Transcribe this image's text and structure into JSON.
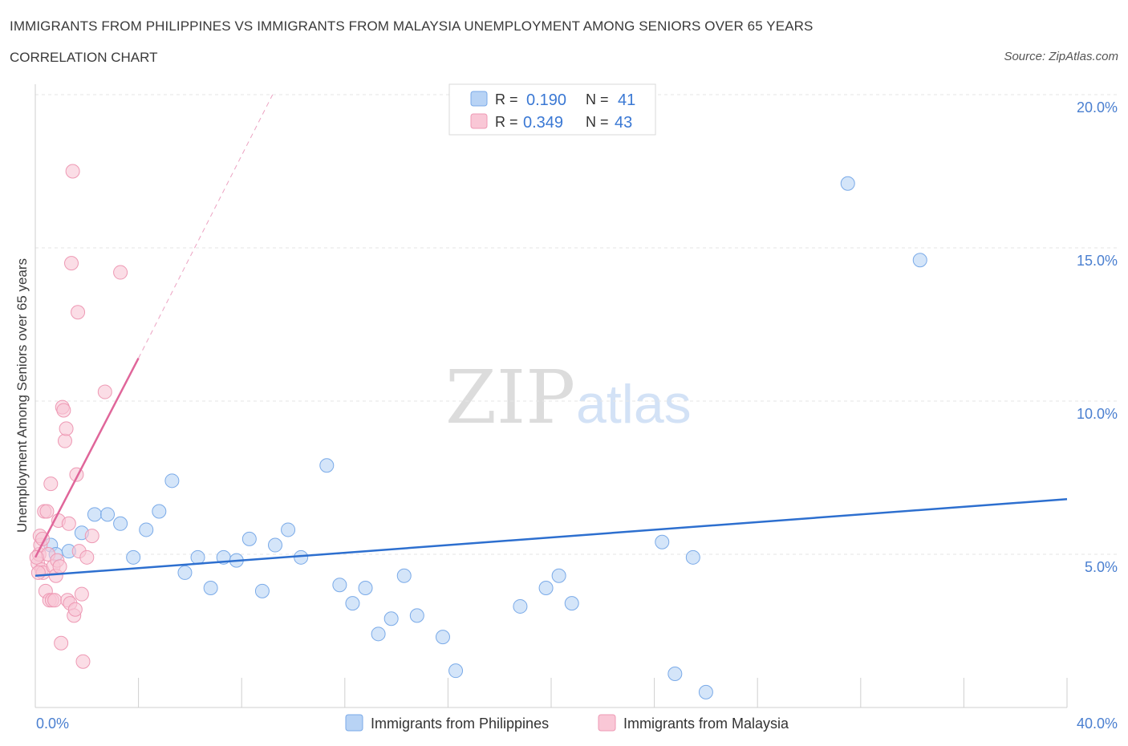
{
  "title": "IMMIGRANTS FROM PHILIPPINES VS IMMIGRANTS FROM MALAYSIA UNEMPLOYMENT AMONG SENIORS OVER 65 YEARS",
  "subtitle": "CORRELATION CHART",
  "source": "Source: ZipAtlas.com",
  "watermark": {
    "zip": "ZIP",
    "atlas": "atlas"
  },
  "legend": {
    "r_label": "R =",
    "n_label": "N =",
    "rows": [
      {
        "r": "0.190",
        "n": "41",
        "color": "#b8d3f5",
        "stroke": "#7aaae8"
      },
      {
        "r": "0.349",
        "n": "43",
        "color": "#f9c7d6",
        "stroke": "#ee99b4"
      }
    ]
  },
  "chart_data": {
    "type": "scatter",
    "title": "IMMIGRANTS FROM PHILIPPINES VS IMMIGRANTS FROM MALAYSIA UNEMPLOYMENT AMONG SENIORS OVER 65 YEARS",
    "xlabel": "",
    "ylabel": "Unemployment Among Seniors over 65 years",
    "xlim": [
      0,
      40
    ],
    "ylim": [
      0,
      20
    ],
    "x_tick_labels": [
      "0.0%",
      "40.0%"
    ],
    "y_ticks": [
      5,
      10,
      15,
      20
    ],
    "y_tick_labels": [
      "5.0%",
      "10.0%",
      "15.0%",
      "20.0%"
    ],
    "grid": true,
    "series": [
      {
        "name": "Immigrants from Philippines",
        "color": "#b8d3f5",
        "stroke": "#7aaae8",
        "line_color": "#2d6fcf",
        "trend": {
          "x": [
            0,
            40
          ],
          "y": [
            4.3,
            6.8
          ]
        },
        "points": [
          [
            0.6,
            5.3
          ],
          [
            0.8,
            5.0
          ],
          [
            1.3,
            5.1
          ],
          [
            1.8,
            5.7
          ],
          [
            2.3,
            6.3
          ],
          [
            2.8,
            6.3
          ],
          [
            3.3,
            6.0
          ],
          [
            3.8,
            4.9
          ],
          [
            4.3,
            5.8
          ],
          [
            4.8,
            6.4
          ],
          [
            5.3,
            7.4
          ],
          [
            5.8,
            4.4
          ],
          [
            6.3,
            4.9
          ],
          [
            6.8,
            3.9
          ],
          [
            7.3,
            4.9
          ],
          [
            7.8,
            4.8
          ],
          [
            8.3,
            5.5
          ],
          [
            8.8,
            3.8
          ],
          [
            9.3,
            5.3
          ],
          [
            9.8,
            5.8
          ],
          [
            10.3,
            4.9
          ],
          [
            11.3,
            7.9
          ],
          [
            11.8,
            4.0
          ],
          [
            12.3,
            3.4
          ],
          [
            12.8,
            3.9
          ],
          [
            13.3,
            2.4
          ],
          [
            13.8,
            2.9
          ],
          [
            14.3,
            4.3
          ],
          [
            14.8,
            3.0
          ],
          [
            15.8,
            2.3
          ],
          [
            16.3,
            1.2
          ],
          [
            18.8,
            3.3
          ],
          [
            19.8,
            3.9
          ],
          [
            20.3,
            4.3
          ],
          [
            20.8,
            3.4
          ],
          [
            24.3,
            5.4
          ],
          [
            24.8,
            1.1
          ],
          [
            25.5,
            4.9
          ],
          [
            26.0,
            0.5
          ],
          [
            31.5,
            17.1
          ],
          [
            34.3,
            14.6
          ]
        ]
      },
      {
        "name": "Immigrants from Malaysia",
        "color": "#f9c7d6",
        "stroke": "#ee99b4",
        "line_color": "#e0669a",
        "trend": {
          "x": [
            0,
            4.0
          ],
          "y": [
            4.9,
            11.4
          ]
        },
        "trend_extension": {
          "x": [
            4.0,
            9.2
          ],
          "y": [
            11.4,
            20.0
          ]
        },
        "points": [
          [
            0.1,
            4.7
          ],
          [
            0.15,
            5.0
          ],
          [
            0.2,
            5.3
          ],
          [
            0.25,
            4.5
          ],
          [
            0.3,
            4.4
          ],
          [
            0.35,
            6.4
          ],
          [
            0.4,
            3.8
          ],
          [
            0.45,
            6.4
          ],
          [
            0.5,
            5.0
          ],
          [
            0.55,
            3.5
          ],
          [
            0.6,
            7.3
          ],
          [
            0.65,
            3.5
          ],
          [
            0.7,
            4.6
          ],
          [
            0.75,
            3.5
          ],
          [
            0.8,
            4.3
          ],
          [
            0.85,
            4.8
          ],
          [
            0.9,
            6.1
          ],
          [
            0.95,
            4.6
          ],
          [
            1.0,
            2.1
          ],
          [
            1.05,
            9.8
          ],
          [
            1.1,
            9.7
          ],
          [
            1.15,
            8.7
          ],
          [
            1.2,
            9.1
          ],
          [
            1.25,
            3.5
          ],
          [
            1.3,
            6.0
          ],
          [
            1.35,
            3.4
          ],
          [
            1.4,
            14.5
          ],
          [
            1.45,
            17.5
          ],
          [
            1.5,
            3.0
          ],
          [
            1.55,
            3.2
          ],
          [
            1.6,
            7.6
          ],
          [
            1.65,
            12.9
          ],
          [
            1.7,
            5.1
          ],
          [
            1.8,
            3.7
          ],
          [
            1.85,
            1.5
          ],
          [
            2.0,
            4.9
          ],
          [
            2.2,
            5.6
          ],
          [
            2.7,
            10.3
          ],
          [
            3.3,
            14.2
          ],
          [
            0.05,
            4.9
          ],
          [
            0.12,
            4.4
          ],
          [
            0.18,
            5.6
          ],
          [
            0.28,
            5.5
          ]
        ]
      }
    ]
  }
}
